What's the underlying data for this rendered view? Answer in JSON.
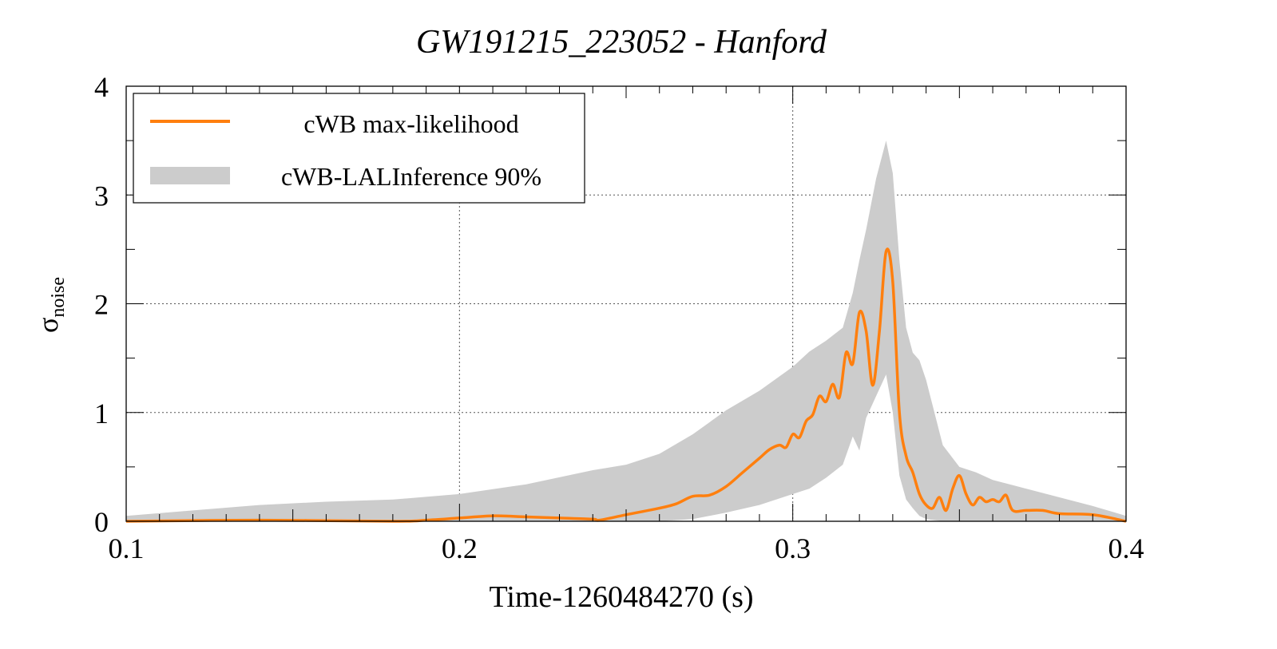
{
  "chart_data": {
    "type": "line",
    "title": "GW191215_223052 - Hanford",
    "xlabel": "Time-1260484270 (s)",
    "ylabel_main": "σ",
    "ylabel_sub": "noise",
    "xlim": [
      0.1,
      0.4
    ],
    "ylim": [
      0,
      4
    ],
    "xticks": [
      0.1,
      0.2,
      0.3,
      0.4
    ],
    "xtick_labels": [
      "0.1",
      "0.2",
      "0.3",
      "0.4"
    ],
    "yticks": [
      0,
      1,
      2,
      3,
      4
    ],
    "ytick_labels": [
      "0",
      "1",
      "2",
      "3",
      "4"
    ],
    "grid": true,
    "legend_position": "top-left",
    "colors": {
      "line": "#ff7f0e",
      "band": "#cccccc"
    },
    "legend": [
      {
        "label": "cWB max-likelihood",
        "kind": "line"
      },
      {
        "label": "cWB-LALInference 90%",
        "kind": "band"
      }
    ],
    "series": [
      {
        "name": "cWB max-likelihood",
        "kind": "line",
        "x": [
          0.1,
          0.14,
          0.18,
          0.19,
          0.2,
          0.21,
          0.22,
          0.23,
          0.24,
          0.242,
          0.25,
          0.26,
          0.265,
          0.27,
          0.275,
          0.28,
          0.285,
          0.29,
          0.293,
          0.296,
          0.298,
          0.3,
          0.302,
          0.304,
          0.306,
          0.308,
          0.31,
          0.312,
          0.314,
          0.316,
          0.318,
          0.32,
          0.322,
          0.324,
          0.326,
          0.328,
          0.33,
          0.332,
          0.334,
          0.336,
          0.338,
          0.34,
          0.342,
          0.344,
          0.346,
          0.348,
          0.35,
          0.352,
          0.354,
          0.356,
          0.358,
          0.36,
          0.362,
          0.364,
          0.366,
          0.37,
          0.375,
          0.38,
          0.39,
          0.4
        ],
        "y": [
          0.0,
          0.01,
          0.0,
          0.01,
          0.03,
          0.05,
          0.04,
          0.03,
          0.02,
          0.01,
          0.06,
          0.12,
          0.16,
          0.23,
          0.24,
          0.32,
          0.45,
          0.58,
          0.66,
          0.7,
          0.68,
          0.8,
          0.77,
          0.92,
          0.98,
          1.15,
          1.1,
          1.26,
          1.14,
          1.55,
          1.45,
          1.92,
          1.75,
          1.25,
          1.75,
          2.48,
          2.2,
          1.0,
          0.6,
          0.45,
          0.25,
          0.15,
          0.12,
          0.22,
          0.1,
          0.3,
          0.42,
          0.25,
          0.15,
          0.22,
          0.18,
          0.2,
          0.18,
          0.24,
          0.1,
          0.1,
          0.1,
          0.07,
          0.06,
          0.0
        ]
      },
      {
        "name": "cWB-LALInference 90%",
        "kind": "band",
        "x": [
          0.1,
          0.12,
          0.14,
          0.16,
          0.18,
          0.2,
          0.22,
          0.24,
          0.25,
          0.26,
          0.27,
          0.28,
          0.29,
          0.3,
          0.305,
          0.31,
          0.315,
          0.318,
          0.32,
          0.322,
          0.325,
          0.328,
          0.33,
          0.332,
          0.334,
          0.336,
          0.338,
          0.34,
          0.345,
          0.35,
          0.355,
          0.36,
          0.37,
          0.38,
          0.39,
          0.4
        ],
        "upper": [
          0.05,
          0.1,
          0.15,
          0.18,
          0.2,
          0.25,
          0.34,
          0.47,
          0.52,
          0.62,
          0.8,
          1.02,
          1.2,
          1.42,
          1.56,
          1.66,
          1.78,
          2.1,
          2.4,
          2.68,
          3.15,
          3.5,
          3.2,
          2.4,
          1.78,
          1.55,
          1.48,
          1.3,
          0.7,
          0.5,
          0.45,
          0.38,
          0.3,
          0.22,
          0.14,
          0.05
        ],
        "lower": [
          0.0,
          0.0,
          0.0,
          0.0,
          0.0,
          0.0,
          0.0,
          0.0,
          0.0,
          0.0,
          0.02,
          0.08,
          0.15,
          0.25,
          0.3,
          0.4,
          0.52,
          0.78,
          0.65,
          0.95,
          1.15,
          1.35,
          1.0,
          0.42,
          0.2,
          0.12,
          0.05,
          0.02,
          0.0,
          0.0,
          0.0,
          0.0,
          0.0,
          0.0,
          0.0,
          0.0
        ]
      }
    ]
  }
}
